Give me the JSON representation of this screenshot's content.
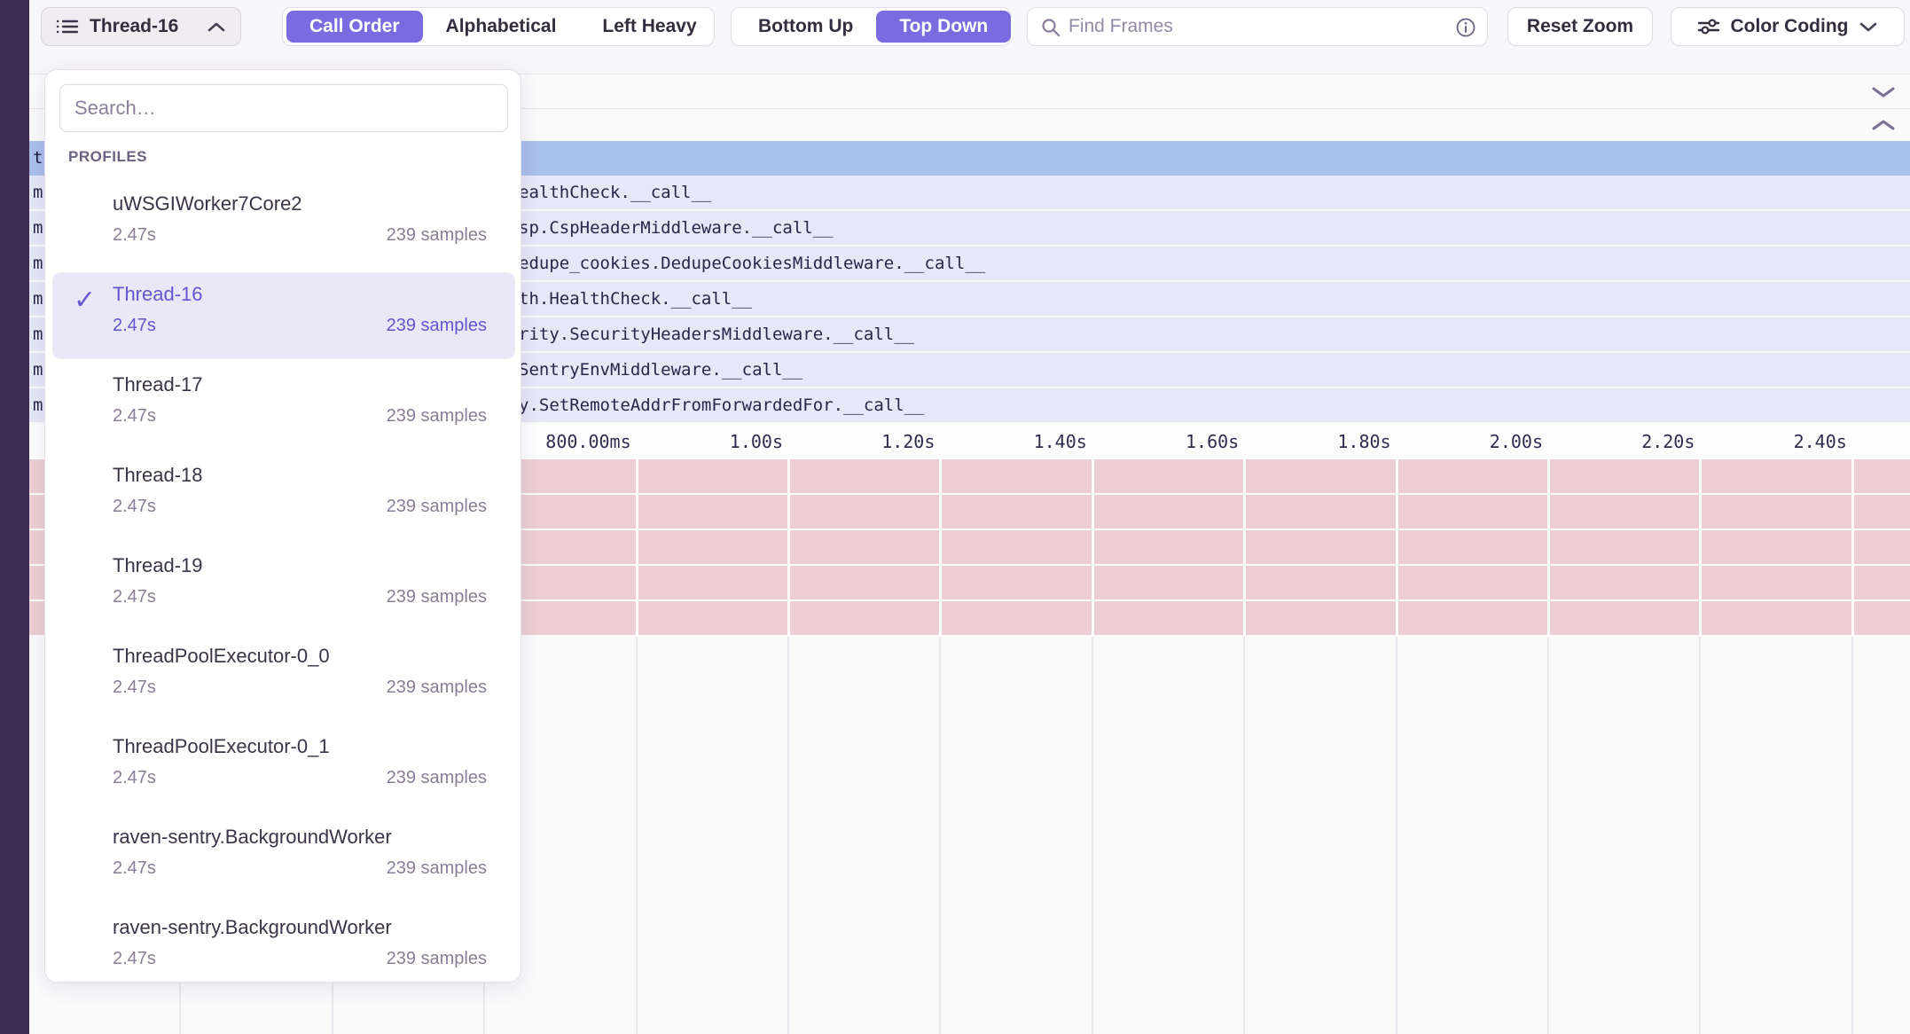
{
  "toolbar": {
    "thread_selector_label": "Thread-16",
    "sort_options": [
      {
        "label": "Call Order",
        "selected": true
      },
      {
        "label": "Alphabetical",
        "selected": false
      },
      {
        "label": "Left Heavy",
        "selected": false
      }
    ],
    "direction_options": [
      {
        "label": "Bottom Up",
        "selected": false
      },
      {
        "label": "Top Down",
        "selected": true
      }
    ],
    "find_frames_placeholder": "Find Frames",
    "reset_zoom_label": "Reset Zoom",
    "color_coding_label": "Color Coding"
  },
  "profiles_dropdown": {
    "search_placeholder": "Search…",
    "section_label": "PROFILES",
    "check_icon": "✓",
    "items": [
      {
        "name": "uWSGIWorker7Core2",
        "duration": "2.47s",
        "samples": "239 samples",
        "selected": false
      },
      {
        "name": "Thread-16",
        "duration": "2.47s",
        "samples": "239 samples",
        "selected": true
      },
      {
        "name": "Thread-17",
        "duration": "2.47s",
        "samples": "239 samples",
        "selected": false
      },
      {
        "name": "Thread-18",
        "duration": "2.47s",
        "samples": "239 samples",
        "selected": false
      },
      {
        "name": "Thread-19",
        "duration": "2.47s",
        "samples": "239 samples",
        "selected": false
      },
      {
        "name": "ThreadPoolExecutor-0_0",
        "duration": "2.47s",
        "samples": "239 samples",
        "selected": false
      },
      {
        "name": "ThreadPoolExecutor-0_1",
        "duration": "2.47s",
        "samples": "239 samples",
        "selected": false
      },
      {
        "name": "raven-sentry.BackgroundWorker",
        "duration": "2.47s",
        "samples": "239 samples",
        "selected": false
      },
      {
        "name": "raven-sentry.BackgroundWorker",
        "duration": "2.47s",
        "samples": "239 samples",
        "selected": false
      }
    ]
  },
  "flamegraph": {
    "selected_frame_sliver": "t",
    "frame_rows": [
      {
        "sliver": "m",
        "label": "ealthCheck.__call__"
      },
      {
        "sliver": "m",
        "label": "sp.CspHeaderMiddleware.__call__"
      },
      {
        "sliver": "m",
        "label": "edupe_cookies.DedupeCookiesMiddleware.__call__"
      },
      {
        "sliver": "m",
        "label": "th.HealthCheck.__call__"
      },
      {
        "sliver": "m",
        "label": "rity.SecurityHeadersMiddleware.__call__"
      },
      {
        "sliver": "m",
        "label": "SentryEnvMiddleware.__call__"
      },
      {
        "sliver": "m",
        "label": "y.SetRemoteAddrFromForwardedFor.__call__"
      }
    ],
    "axis_ticks": [
      "800.00ms",
      "1.00s",
      "1.20s",
      "1.40s",
      "1.60s",
      "1.80s",
      "2.00s",
      "2.20s",
      "2.40s"
    ]
  },
  "colors": {
    "accent": "#7a6ce0",
    "sidebar_strip": "#3e2c50",
    "selected_row_blue": "#a9bfec",
    "frame_row_lavender": "#e6e7f7",
    "sample_row_pink": "#edced4"
  }
}
